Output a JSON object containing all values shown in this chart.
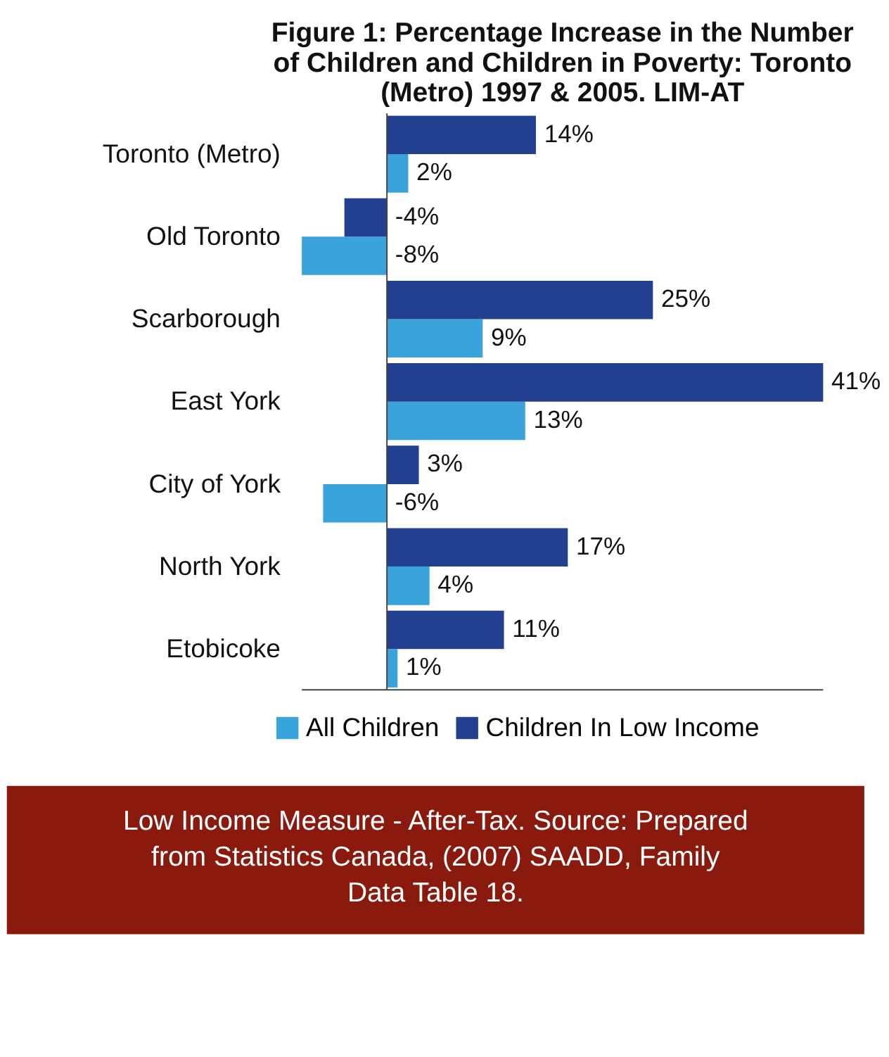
{
  "chart_data": {
    "type": "bar",
    "orientation": "horizontal",
    "title": "Figure 1: Percentage Increase in the Number of Children and Children in Poverty: Toronto (Metro) 1997 & 2005. LIM-AT",
    "categories": [
      "Toronto (Metro)",
      "Old Toronto",
      "Scarborough",
      "East York",
      "City of York",
      "North York",
      "Etobicoke"
    ],
    "series": [
      {
        "name": "All Children",
        "color": "#3ba3db",
        "values": [
          2,
          -8,
          9,
          13,
          -6,
          4,
          1
        ],
        "value_labels": [
          "2%",
          "-8%",
          "9%",
          "13%",
          "-6%",
          "4%",
          "1%"
        ]
      },
      {
        "name": "Children In Low Income",
        "color": "#233f8f",
        "values": [
          14,
          -4,
          25,
          41,
          3,
          17,
          11
        ],
        "value_labels": [
          "14%",
          "-4%",
          "25%",
          "41%",
          "3%",
          "17%",
          "11%"
        ]
      }
    ],
    "tick_labels": "y",
    "grid": false,
    "legend": "bottom",
    "annotations": [
      "Low Income Measure - After-Tax. Source: Prepared from Statistics Canada, (2007) SAADD, Family Data Table 18."
    ]
  }
}
